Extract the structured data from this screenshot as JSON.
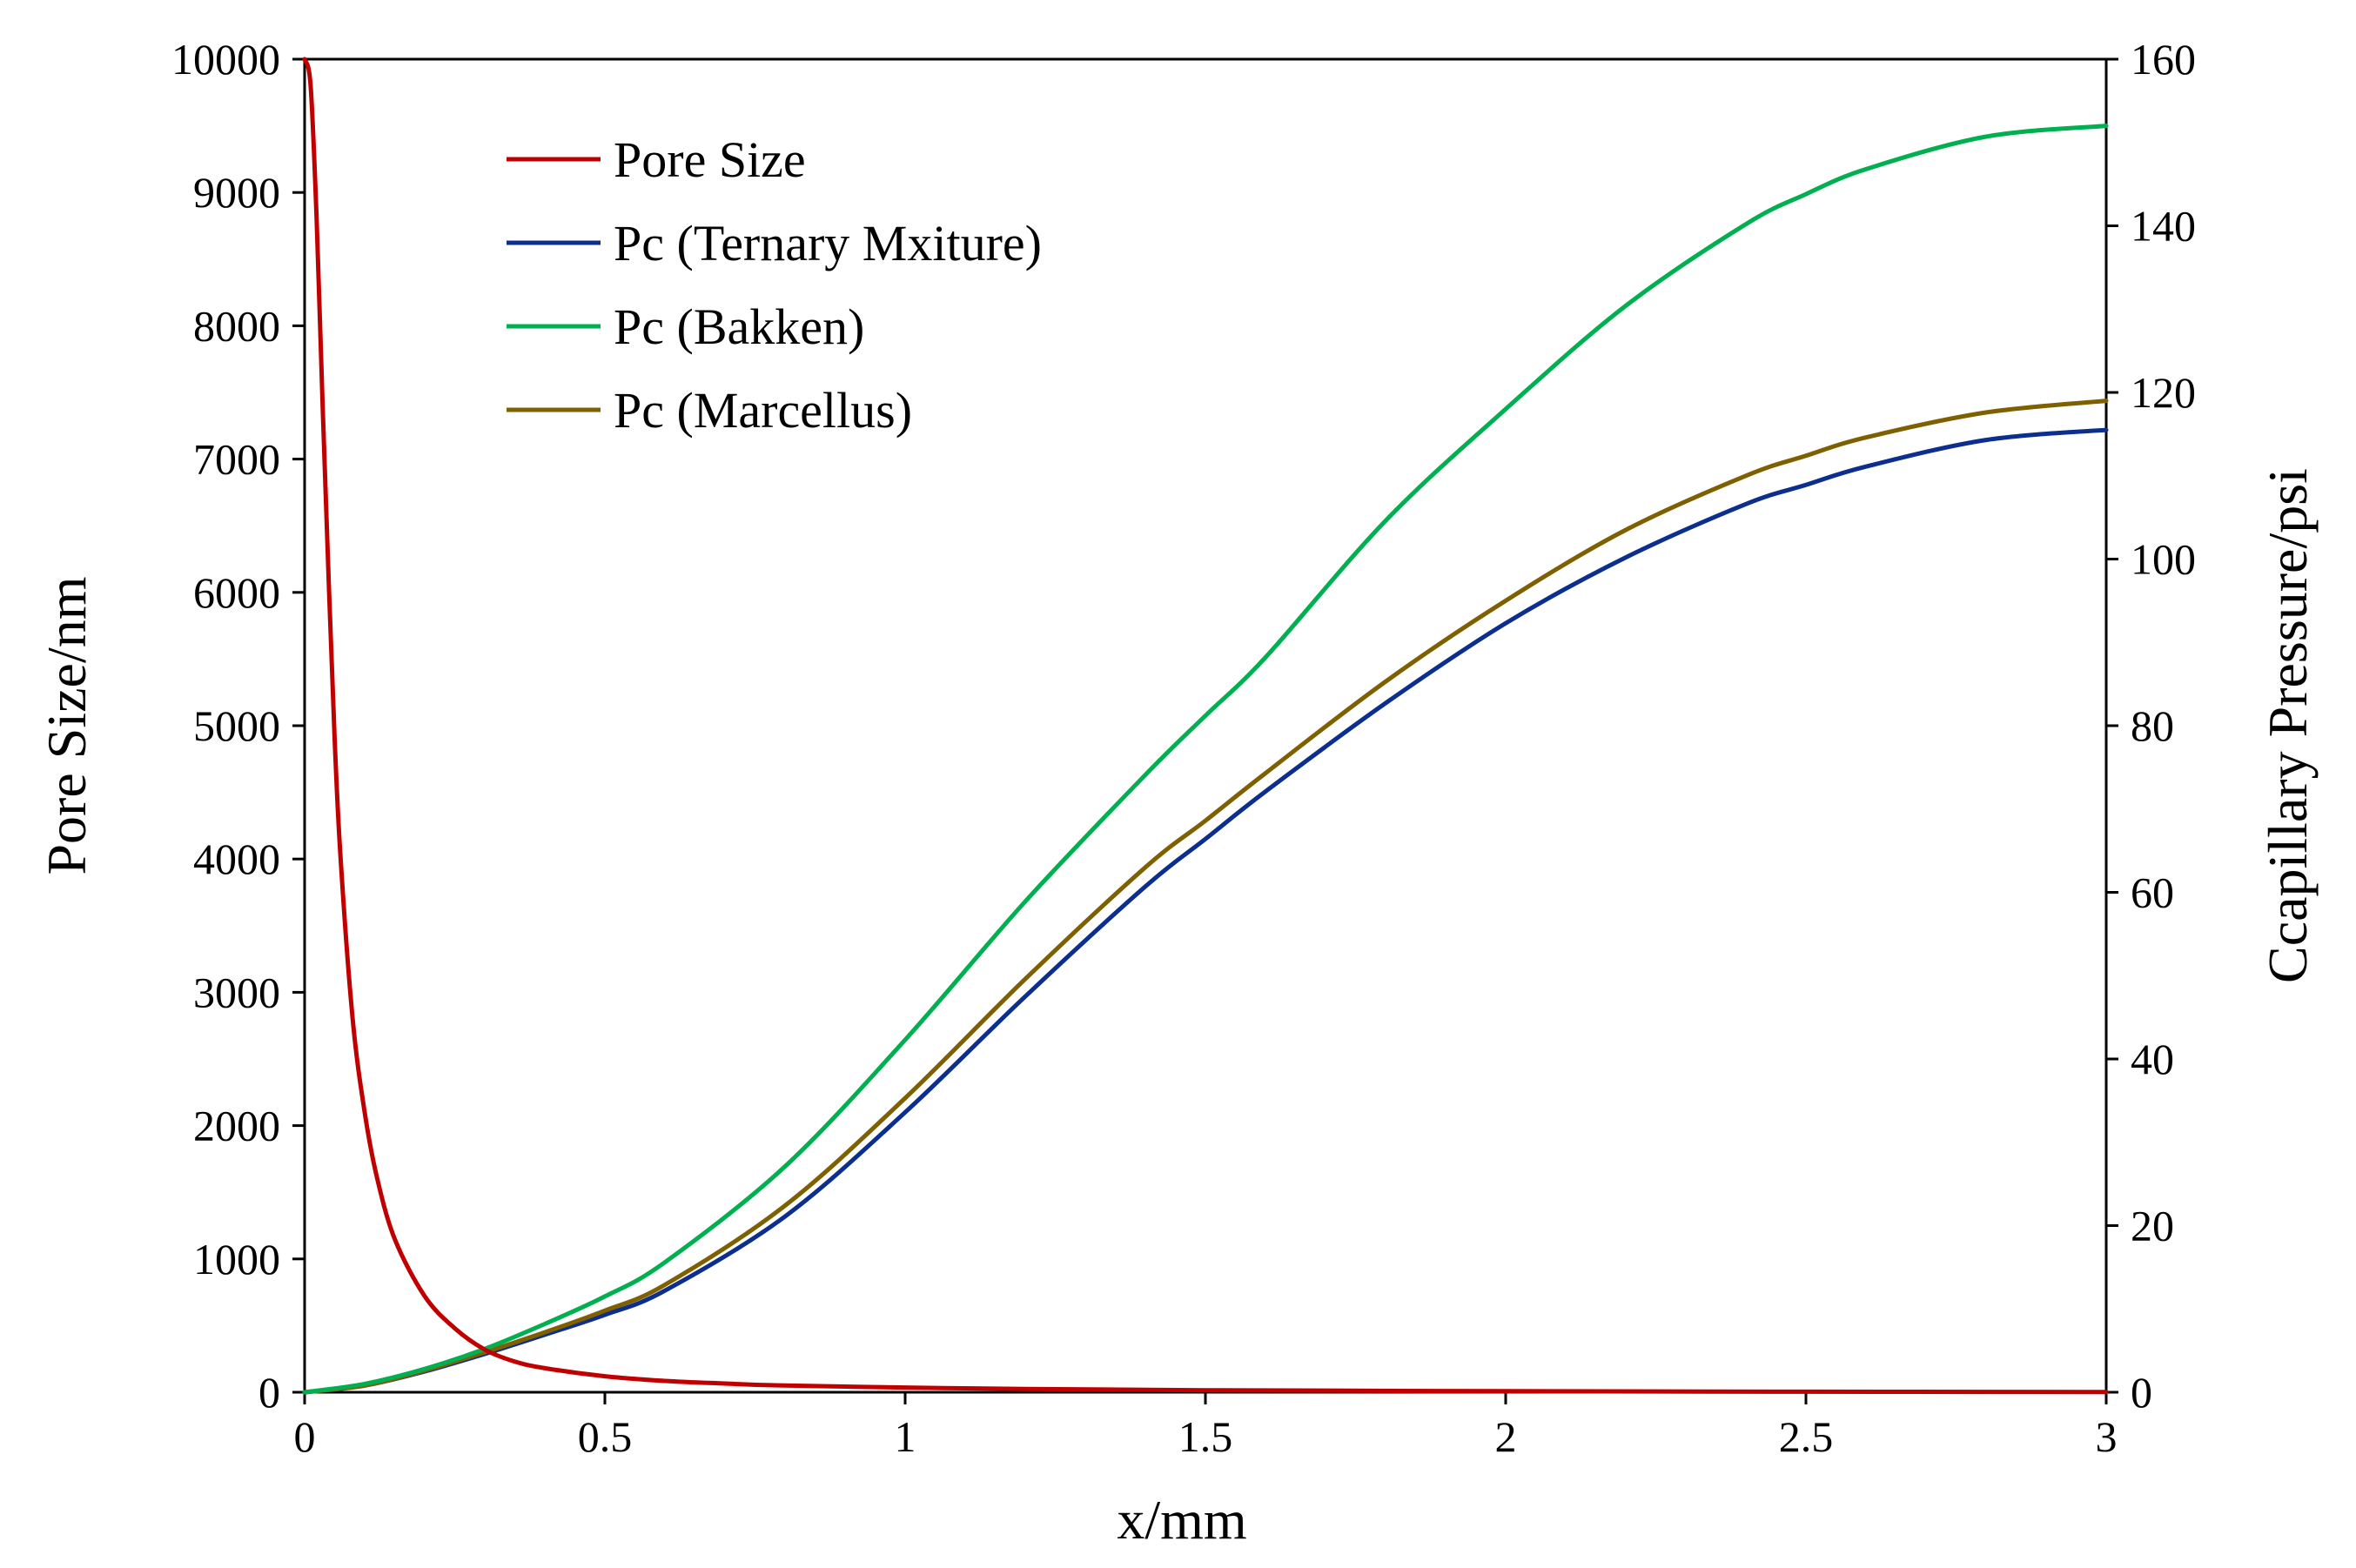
{
  "chart_data": {
    "type": "line",
    "title": "",
    "xlabel": "x/mm",
    "ylabel": "Pore Size/nm",
    "y2label": "Ccapillary Pressure/psi",
    "xlim": [
      0,
      3
    ],
    "ylim": [
      0,
      10000
    ],
    "y2lim": [
      0,
      160
    ],
    "x_ticks": [
      0,
      0.5,
      1,
      1.5,
      2,
      2.5,
      3
    ],
    "x_tick_labels": [
      "0",
      "0.5",
      "1",
      "1.5",
      "2",
      "2.5",
      "3"
    ],
    "y_ticks": [
      0,
      1000,
      2000,
      3000,
      4000,
      5000,
      6000,
      7000,
      8000,
      9000,
      10000
    ],
    "y_tick_labels": [
      "0",
      "1000",
      "2000",
      "3000",
      "4000",
      "5000",
      "6000",
      "7000",
      "8000",
      "9000",
      "10000"
    ],
    "y2_ticks": [
      0,
      20,
      40,
      60,
      80,
      100,
      120,
      140,
      160
    ],
    "y2_tick_labels": [
      "0",
      "20",
      "40",
      "60",
      "80",
      "100",
      "120",
      "140",
      "160"
    ],
    "grid": false,
    "legend_position": "top-left",
    "series": [
      {
        "name": "Pore Size",
        "axis": "left",
        "color": "#c00000",
        "x": [
          0,
          0.01,
          0.02,
          0.03,
          0.04,
          0.05,
          0.06,
          0.08,
          0.1,
          0.12,
          0.15,
          0.2,
          0.25,
          0.3,
          0.35,
          0.4,
          0.5,
          0.6,
          0.7,
          0.8,
          1.0,
          1.2,
          1.5,
          2.0,
          2.5,
          3.0
        ],
        "values": [
          10000,
          9800,
          8800,
          7400,
          6100,
          4900,
          4000,
          2800,
          2100,
          1620,
          1150,
          720,
          480,
          320,
          230,
          180,
          120,
          85,
          65,
          50,
          35,
          25,
          15,
          8,
          4,
          2
        ]
      },
      {
        "name": "Pc (Ternary Mxiture)",
        "axis": "right",
        "color": "#0b2e8f",
        "x": [
          0,
          0.1,
          0.2,
          0.3,
          0.4,
          0.5,
          0.6,
          0.8,
          1.0,
          1.2,
          1.4,
          1.5,
          1.6,
          1.8,
          2.0,
          2.2,
          2.4,
          2.5,
          2.6,
          2.8,
          3.0
        ],
        "values": [
          0,
          0.8,
          2.5,
          4.6,
          6.9,
          9.3,
          12.2,
          21.1,
          33.6,
          47.5,
          60.7,
          66.4,
          72.1,
          82.7,
          92.3,
          100.2,
          106.6,
          108.9,
          111.1,
          114.3,
          115.5
        ]
      },
      {
        "name": "Pc (Bakken)",
        "axis": "right",
        "color": "#00b050",
        "x": [
          0,
          0.1,
          0.2,
          0.3,
          0.4,
          0.5,
          0.6,
          0.8,
          1.0,
          1.2,
          1.4,
          1.5,
          1.6,
          1.8,
          2.0,
          2.2,
          2.4,
          2.5,
          2.6,
          2.8,
          3.0
        ],
        "values": [
          0,
          1.0,
          2.8,
          5.2,
          8.2,
          11.5,
          15.6,
          27.1,
          42.3,
          58.9,
          74.1,
          81.2,
          88.2,
          104.6,
          118.0,
          130.4,
          140.2,
          143.8,
          146.8,
          150.7,
          152.0
        ]
      },
      {
        "name": "Pc (Marcellus)",
        "axis": "right",
        "color": "#7f6000",
        "x": [
          0,
          0.1,
          0.2,
          0.3,
          0.4,
          0.5,
          0.6,
          0.8,
          1.0,
          1.2,
          1.4,
          1.5,
          1.6,
          1.8,
          2.0,
          2.2,
          2.4,
          2.5,
          2.6,
          2.8,
          3.0
        ],
        "values": [
          0,
          0.8,
          2.6,
          4.8,
          7.2,
          9.8,
          12.9,
          22.4,
          35.3,
          49.6,
          63.0,
          68.6,
          74.3,
          85.3,
          95.0,
          103.5,
          110.0,
          112.4,
          114.6,
          117.6,
          119.0
        ]
      }
    ]
  }
}
